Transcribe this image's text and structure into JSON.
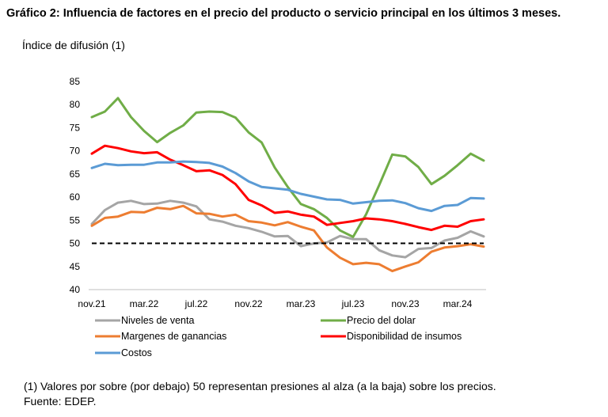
{
  "chart_data": {
    "type": "line",
    "title": "Gráfico 2: Influencia de factores en el precio del producto o servicio principal en los últimos 3 meses.",
    "subtitle": "Índice de difusión (1)",
    "xlabel": "",
    "ylabel": "Índice de difusión (1)",
    "ylim": [
      40,
      85
    ],
    "yticks": [
      40,
      45,
      50,
      55,
      60,
      65,
      70,
      75,
      80,
      85
    ],
    "n_points": 31,
    "x_tick_labels": [
      {
        "index": 0,
        "label": "nov.21"
      },
      {
        "index": 4,
        "label": "mar.22"
      },
      {
        "index": 8,
        "label": "jul.22"
      },
      {
        "index": 12,
        "label": "nov.22"
      },
      {
        "index": 16,
        "label": "mar.23"
      },
      {
        "index": 20,
        "label": "jul.23"
      },
      {
        "index": 24,
        "label": "nov.23"
      },
      {
        "index": 28,
        "label": "mar.24"
      }
    ],
    "reference_line": {
      "value": 50,
      "style": "dashed"
    },
    "series": [
      {
        "name": "Niveles de venta",
        "color": "#a5a5a5",
        "values": [
          54.2,
          57.2,
          58.8,
          59.2,
          58.5,
          58.6,
          59.2,
          58.8,
          58.0,
          55.2,
          54.7,
          53.8,
          53.3,
          52.5,
          51.5,
          51.6,
          49.4,
          50.0,
          50.2,
          51.6,
          50.9,
          50.9,
          48.5,
          47.4,
          47.0,
          48.8,
          49.0,
          50.6,
          51.2,
          52.6,
          51.5
        ]
      },
      {
        "name": "Precio del dolar",
        "color": "#70ad47",
        "values": [
          77.3,
          78.5,
          81.4,
          77.3,
          74.3,
          71.9,
          73.9,
          75.5,
          78.3,
          78.5,
          78.4,
          77.2,
          74.0,
          71.8,
          66.4,
          62.2,
          58.5,
          57.4,
          55.5,
          52.8,
          51.4,
          56.3,
          62.6,
          69.2,
          68.8,
          66.5,
          62.8,
          64.6,
          66.9,
          69.4,
          67.9
        ]
      },
      {
        "name": "Margenes de ganancias",
        "color": "#ed7d31",
        "values": [
          53.8,
          55.5,
          55.8,
          56.8,
          56.7,
          57.7,
          57.4,
          58.1,
          56.5,
          56.4,
          55.8,
          56.2,
          54.8,
          54.5,
          53.9,
          54.6,
          53.6,
          52.8,
          49.1,
          46.9,
          45.5,
          45.8,
          45.5,
          44.0,
          45.0,
          45.9,
          48.2,
          49.1,
          49.4,
          49.8,
          49.3
        ]
      },
      {
        "name": "Disponibilidad de insumos",
        "color": "#ff0000",
        "values": [
          69.4,
          71.1,
          70.6,
          69.9,
          69.5,
          69.7,
          68.1,
          66.9,
          65.6,
          65.8,
          64.8,
          62.8,
          59.4,
          58.2,
          56.6,
          56.9,
          56.2,
          55.8,
          54.0,
          54.4,
          54.8,
          55.4,
          55.2,
          54.8,
          54.2,
          53.5,
          52.9,
          53.8,
          53.6,
          54.8,
          55.2
        ]
      },
      {
        "name": "Costos",
        "color": "#5b9bd5",
        "values": [
          66.3,
          67.2,
          66.9,
          67.0,
          67.0,
          67.5,
          67.5,
          67.7,
          67.6,
          67.4,
          66.6,
          65.2,
          63.4,
          62.2,
          61.9,
          61.6,
          60.7,
          60.1,
          59.5,
          59.4,
          58.6,
          58.9,
          59.2,
          59.3,
          58.7,
          57.6,
          57.0,
          58.1,
          58.3,
          59.8,
          59.7
        ]
      }
    ]
  },
  "footnote": "(1) Valores por sobre (por debajo) 50 representan presiones al alza (a la baja) sobre los precios.",
  "source": "Fuente: EDEP."
}
